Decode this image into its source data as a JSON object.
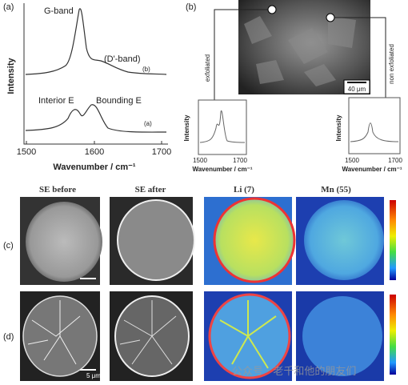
{
  "panel_a": {
    "label": "(a)",
    "y_label": "Intensity",
    "x_label": "Wavenumber / cm⁻¹",
    "x_ticks": [
      "1500",
      "1600",
      "1700"
    ],
    "annotations": [
      "G-band",
      "(D'-band)",
      "(b)",
      "Interior E",
      "Bounding E",
      "(a)"
    ]
  },
  "panel_b": {
    "label": "(b)",
    "left_callout": "exfoliated",
    "right_callout": "non exfoliated",
    "scale_bar": "40 μm",
    "insets": [
      {
        "y_label": "Intensity",
        "x_label": "Wavenumber / cm⁻¹",
        "x_ticks": [
          "1500",
          "1700"
        ]
      },
      {
        "y_label": "Intensity",
        "x_label": "Wavenumber / cm⁻¹",
        "x_ticks": [
          "1500",
          "1700"
        ]
      }
    ]
  },
  "maps": {
    "columns": [
      "SE before",
      "SE after",
      "Li (7)",
      "Mn (55)"
    ],
    "rows": [
      "(c)",
      "(d)"
    ],
    "scale_bar": "5 μm"
  },
  "watermark": "公众号 · 老千和他的朋友们"
}
